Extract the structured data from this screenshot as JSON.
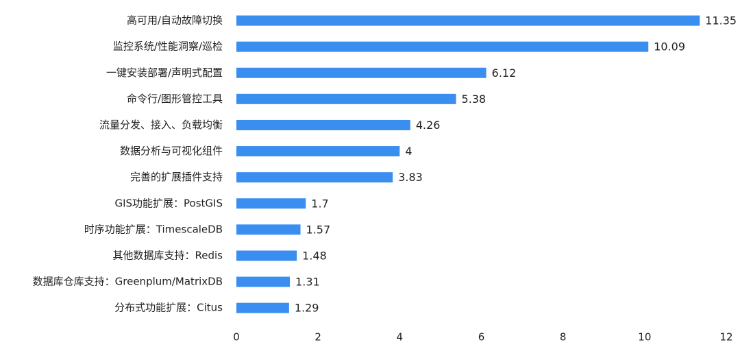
{
  "chart_data": {
    "type": "bar",
    "orientation": "horizontal",
    "categories": [
      "高可用/自动故障切换",
      "监控系统/性能洞察/巡检",
      "一键安装部署/声明式配置",
      "命令行/图形管控工具",
      "流量分发、接入、负载均衡",
      "数据分析与可视化组件",
      "完善的扩展插件支持",
      "GIS功能扩展：PostGIS",
      "时序功能扩展：TimescaleDB",
      "其他数据库支持：Redis",
      "数据库仓库支持：Greenplum/MatrixDB",
      "分布式功能扩展：Citus"
    ],
    "values": [
      11.35,
      10.09,
      6.12,
      5.38,
      4.26,
      4,
      3.83,
      1.7,
      1.57,
      1.48,
      1.31,
      1.29
    ],
    "color": "#3a8ef0",
    "xlim": [
      0,
      12
    ],
    "xticks": [
      0,
      2,
      4,
      6,
      8,
      10,
      12
    ],
    "grid": false
  }
}
